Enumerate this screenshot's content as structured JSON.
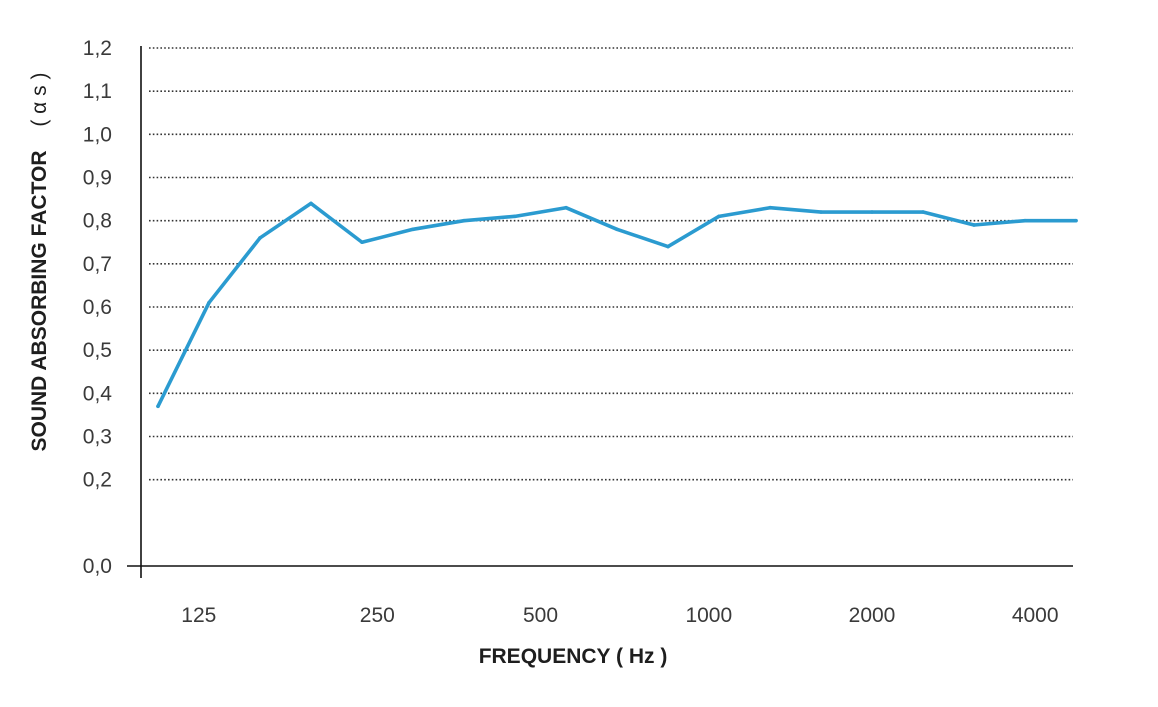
{
  "chart_data": {
    "type": "line",
    "title": "",
    "xlabel": "FREQUENCY ( Hz )",
    "ylabel": "SOUND ABSORBING FACTOR",
    "ylabel_symbol": "( α s )",
    "ylim": [
      0,
      1.2
    ],
    "y_ticks": [
      "0,0",
      "0,2",
      "0,3",
      "0,4",
      "0,5",
      "0,6",
      "0,7",
      "0,8",
      "0,9",
      "1,0",
      "1,1",
      "1,2"
    ],
    "y_tick_values": [
      0.0,
      0.2,
      0.3,
      0.4,
      0.5,
      0.6,
      0.7,
      0.8,
      0.9,
      1.0,
      1.1,
      1.2
    ],
    "grid": true,
    "x_band_index_range": [
      0,
      18.7
    ],
    "x_tick_labels": [
      "125",
      "250",
      "500",
      "1000",
      "2000",
      "4000"
    ],
    "x_tick_band_index": [
      0.8,
      4.3,
      7.5,
      10.8,
      14.0,
      17.2
    ],
    "series": [
      {
        "name": "Sound absorbing factor",
        "color": "#2b9bd0",
        "x": [
          0,
          1,
          2,
          3,
          4,
          5,
          6,
          7,
          8,
          9,
          10,
          11,
          12,
          13,
          14,
          15,
          16,
          17,
          18
        ],
        "values": [
          0.37,
          0.61,
          0.76,
          0.84,
          0.75,
          0.78,
          0.8,
          0.81,
          0.83,
          0.78,
          0.74,
          0.81,
          0.83,
          0.82,
          0.82,
          0.82,
          0.79,
          0.8,
          0.8
        ]
      }
    ]
  }
}
